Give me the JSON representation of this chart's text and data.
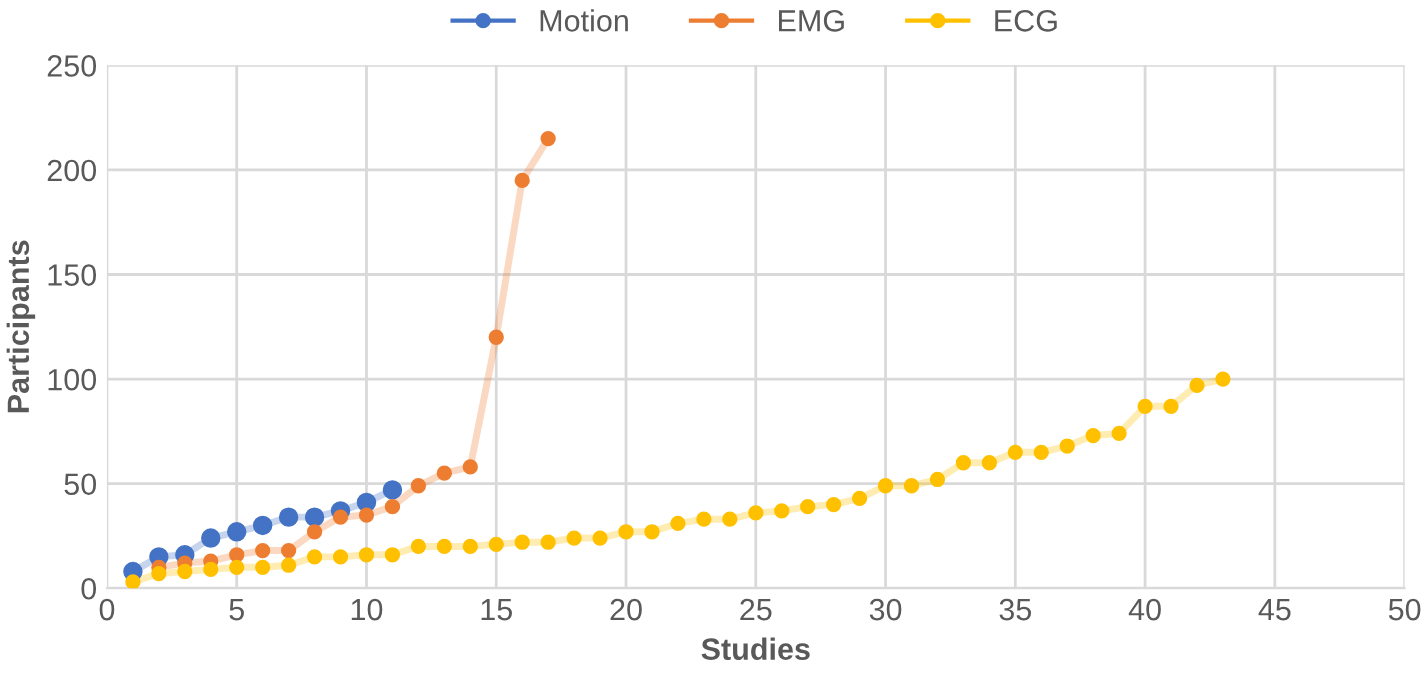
{
  "chart_data": {
    "type": "line",
    "xlabel": "Studies",
    "ylabel": "Participants",
    "xlim": [
      0,
      50
    ],
    "xticks": [
      0,
      5,
      10,
      15,
      20,
      25,
      30,
      35,
      40,
      45,
      50
    ],
    "ylim": [
      0,
      250
    ],
    "yticks": [
      0,
      50,
      100,
      150,
      200,
      250
    ],
    "grid": true,
    "legend": "top",
    "marker": "circle",
    "series": [
      {
        "name": "Motion",
        "color": "#4472c4",
        "x": [
          1,
          2,
          3,
          4,
          5,
          6,
          7,
          8,
          9,
          10,
          11
        ],
        "values": [
          8,
          15,
          16,
          24,
          27,
          30,
          34,
          34,
          37,
          41,
          47
        ]
      },
      {
        "name": "EMG",
        "color": "#ed7d31",
        "x": [
          2,
          3,
          4,
          5,
          6,
          7,
          8,
          9,
          10,
          11,
          12,
          13,
          14,
          15,
          16,
          17
        ],
        "values": [
          10,
          12,
          13,
          16,
          18,
          18,
          27,
          34,
          35,
          39,
          49,
          55,
          58,
          120,
          195,
          215
        ]
      },
      {
        "name": "ECG",
        "color": "#ffc000",
        "x": [
          1,
          2,
          3,
          4,
          5,
          6,
          7,
          8,
          9,
          10,
          11,
          12,
          13,
          14,
          15,
          16,
          17,
          18,
          19,
          20,
          21,
          22,
          23,
          24,
          25,
          26,
          27,
          28,
          29,
          30,
          31,
          32,
          33,
          34,
          35,
          36,
          37,
          38,
          39,
          40,
          41,
          42,
          43
        ],
        "values": [
          3,
          7,
          8,
          9,
          10,
          10,
          11,
          15,
          15,
          16,
          16,
          20,
          20,
          20,
          21,
          22,
          22,
          24,
          24,
          27,
          27,
          31,
          33,
          33,
          36,
          37,
          39,
          40,
          43,
          49,
          49,
          52,
          60,
          60,
          65,
          65,
          68,
          73,
          74,
          87,
          87,
          97,
          100
        ]
      }
    ]
  }
}
